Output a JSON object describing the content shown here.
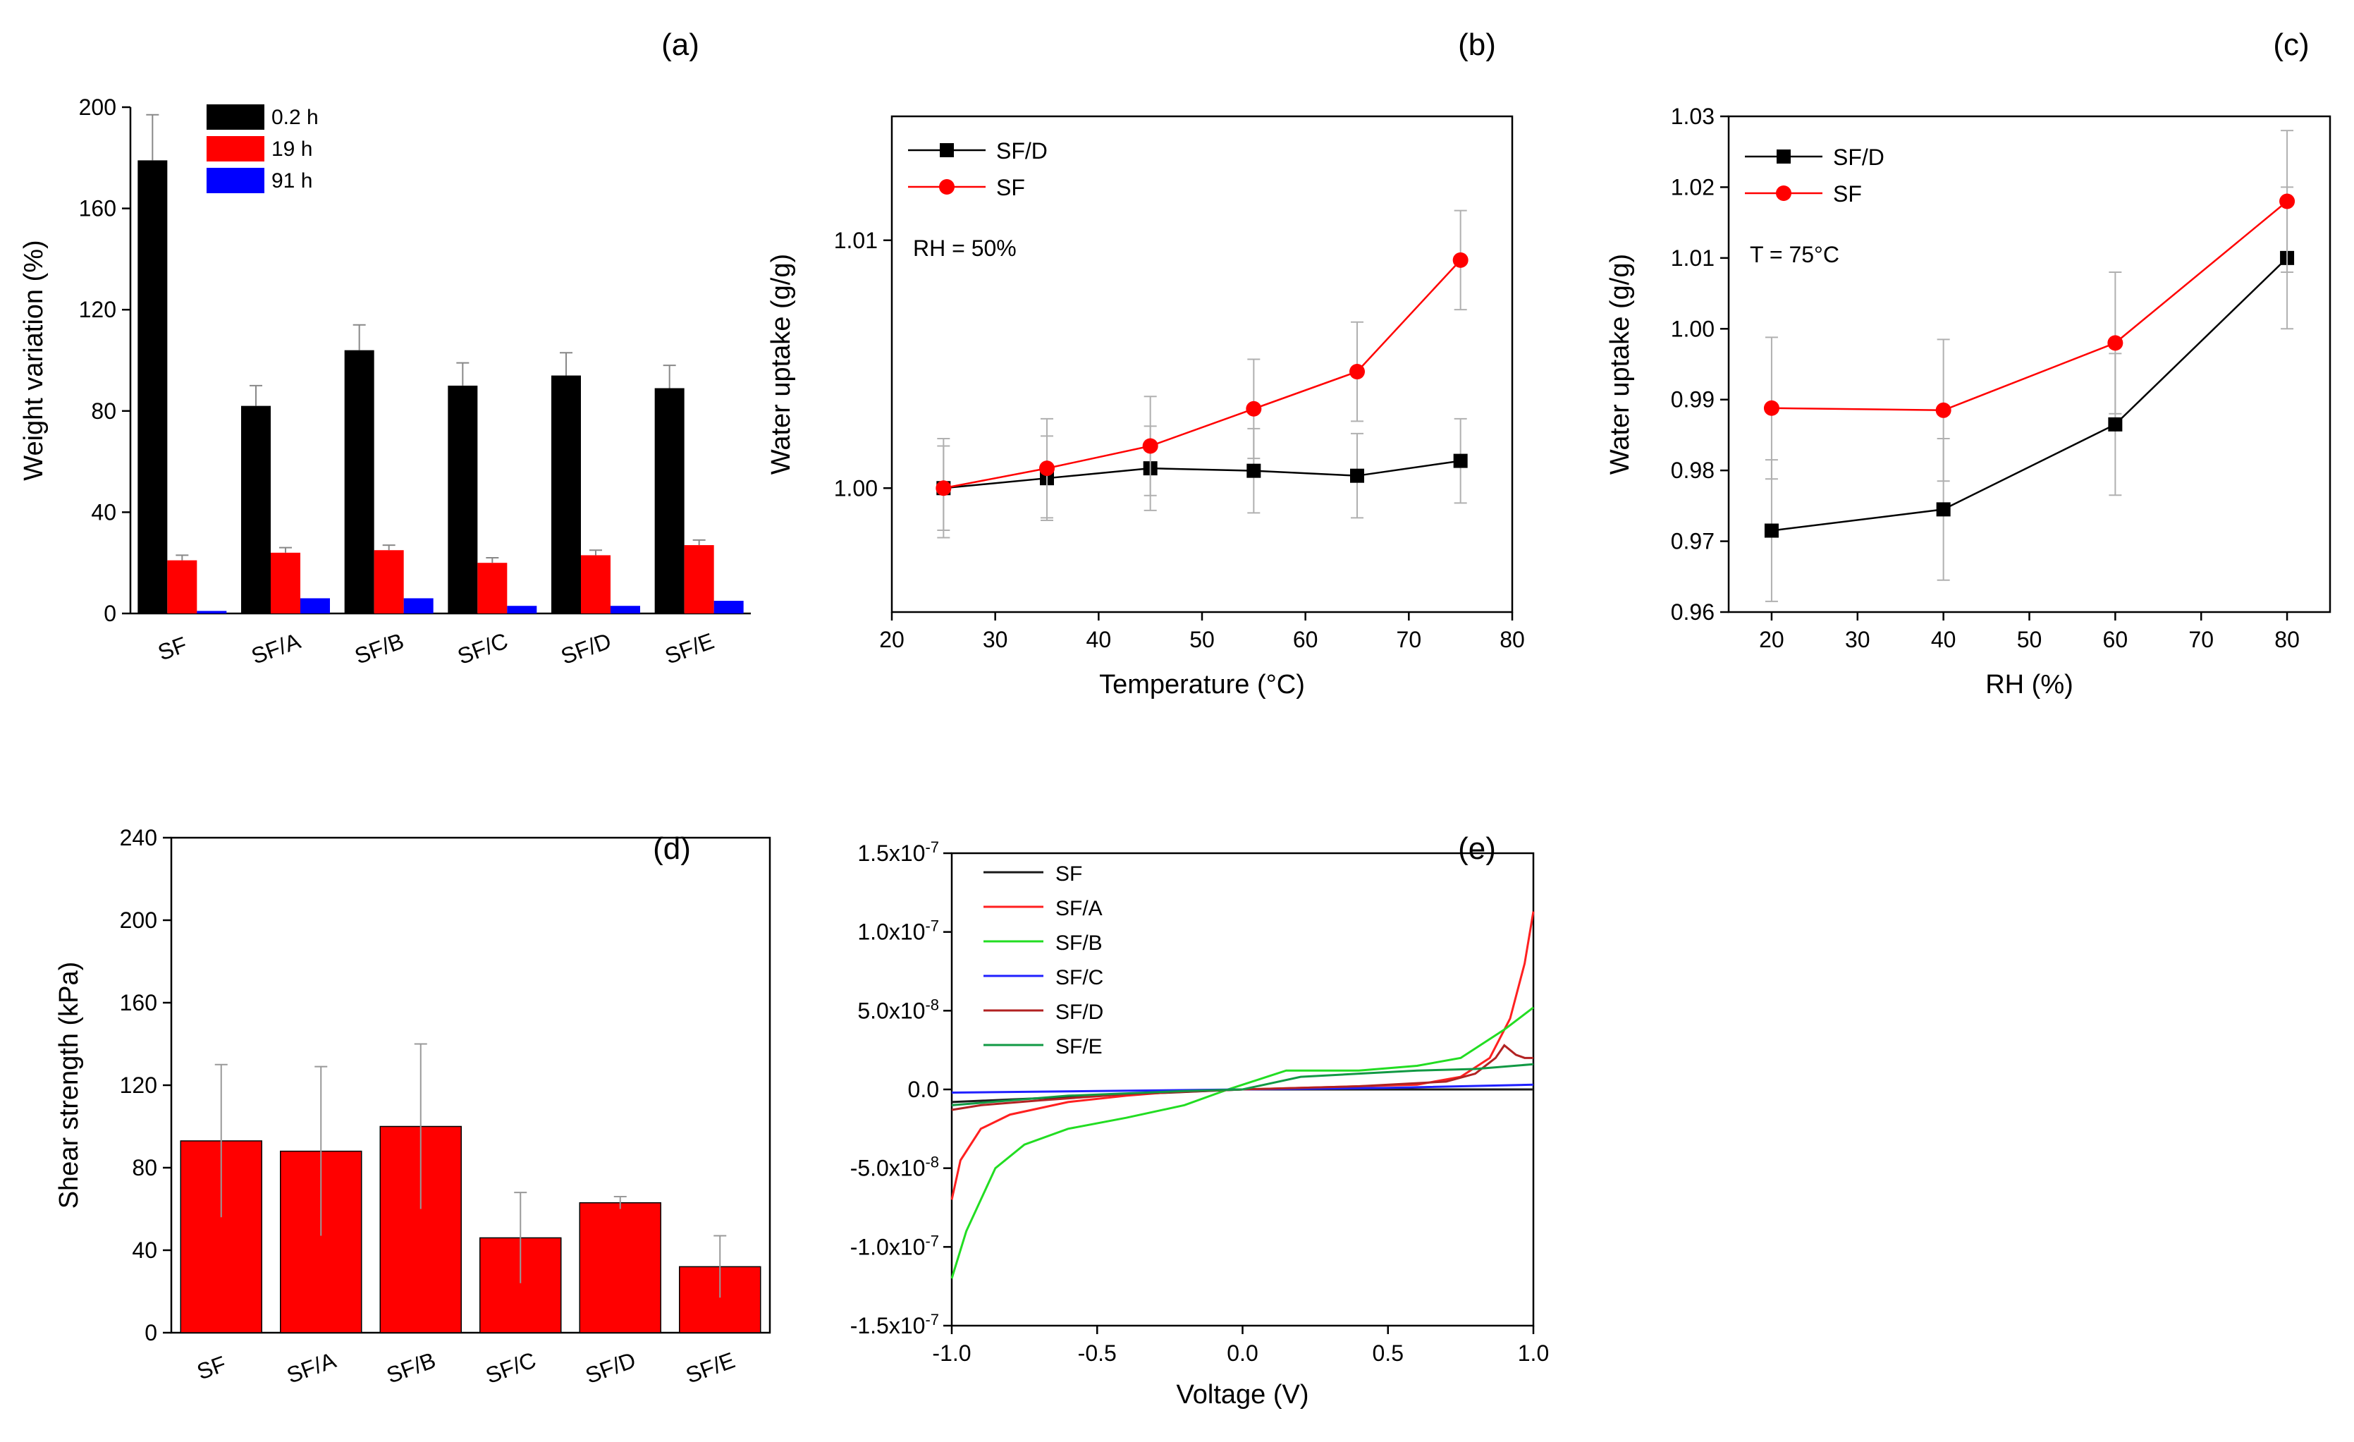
{
  "figure": {
    "panels": [
      "(a)",
      "(b)",
      "(c)",
      "(d)",
      "(e)"
    ]
  },
  "chart_data": [
    {
      "id": "a",
      "type": "bar",
      "panel_label": "(a)",
      "title": "",
      "ylabel": "Weight variation (%)",
      "xlabel": "",
      "ylim": [
        0,
        200
      ],
      "yticks": [
        "0",
        "40",
        "80",
        "120",
        "160",
        "200"
      ],
      "categories": [
        "SF",
        "SF/A",
        "SF/B",
        "SF/C",
        "SF/D",
        "SF/E"
      ],
      "series": [
        {
          "name": "0.2 h",
          "color": "#000000",
          "values": [
            179,
            82,
            104,
            90,
            94,
            89
          ],
          "errors": [
            18,
            8,
            10,
            9,
            9,
            9
          ]
        },
        {
          "name": "19 h",
          "color": "#ff0000",
          "values": [
            21,
            24,
            25,
            20,
            23,
            27
          ],
          "errors": [
            2,
            2,
            2,
            2,
            2,
            2
          ]
        },
        {
          "name": "91 h",
          "color": "#0000ff",
          "values": [
            1,
            6,
            6,
            3,
            3,
            5
          ],
          "errors": [
            0,
            0,
            0,
            0,
            0,
            0
          ]
        }
      ]
    },
    {
      "id": "b",
      "type": "line",
      "panel_label": "(b)",
      "xlabel": "Temperature (°C)",
      "ylabel": "Water uptake (g/g)",
      "annotation": "RH = 50%",
      "xlim": [
        20,
        80
      ],
      "ylim": [
        0.995,
        1.015
      ],
      "xticks": [
        "20",
        "30",
        "40",
        "50",
        "60",
        "70",
        "80"
      ],
      "yticks": [
        "1.00",
        "1.01"
      ],
      "x": [
        25,
        35,
        45,
        55,
        65,
        75
      ],
      "series": [
        {
          "name": "SF/D",
          "color": "#000000",
          "marker": "square",
          "values": [
            1.0,
            1.0004,
            1.0008,
            1.0007,
            1.0005,
            1.0011
          ],
          "errors": [
            0.0017,
            0.0017,
            0.0017,
            0.0017,
            0.0017,
            0.0017
          ]
        },
        {
          "name": "SF",
          "color": "#ff0000",
          "marker": "circle",
          "values": [
            1.0,
            1.0008,
            1.0017,
            1.0032,
            1.0047,
            1.0092
          ],
          "errors": [
            0.002,
            0.002,
            0.002,
            0.002,
            0.002,
            0.002
          ]
        }
      ]
    },
    {
      "id": "c",
      "type": "line",
      "panel_label": "(c)",
      "xlabel": "RH (%)",
      "ylabel": "Water uptake (g/g)",
      "annotation": "T = 75°C",
      "xlim": [
        15,
        85
      ],
      "ylim": [
        0.96,
        1.03
      ],
      "xticks": [
        "20",
        "30",
        "40",
        "50",
        "60",
        "70",
        "80"
      ],
      "yticks": [
        "0.96",
        "0.97",
        "0.98",
        "0.99",
        "1.00",
        "1.01",
        "1.02",
        "1.03"
      ],
      "x": [
        20,
        40,
        60,
        80
      ],
      "series": [
        {
          "name": "SF/D",
          "color": "#000000",
          "marker": "square",
          "values": [
            0.9715,
            0.9745,
            0.9865,
            1.01
          ],
          "errors": [
            0.01,
            0.01,
            0.01,
            0.01
          ]
        },
        {
          "name": "SF",
          "color": "#ff0000",
          "marker": "circle",
          "values": [
            0.9888,
            0.9885,
            0.998,
            1.018
          ],
          "errors": [
            0.01,
            0.01,
            0.01,
            0.01
          ]
        }
      ]
    },
    {
      "id": "d",
      "type": "bar",
      "panel_label": "(d)",
      "xlabel": "",
      "ylabel": "Shear strength (kPa)",
      "ylim": [
        0,
        240
      ],
      "yticks": [
        "0",
        "40",
        "80",
        "120",
        "160",
        "200",
        "240"
      ],
      "categories": [
        "SF",
        "SF/A",
        "SF/B",
        "SF/C",
        "SF/D",
        "SF/E"
      ],
      "series": [
        {
          "name": "Shear strength",
          "color": "#ff0000",
          "values": [
            93,
            88,
            100,
            46,
            63,
            32
          ],
          "errors": [
            37,
            41,
            40,
            22,
            3,
            15
          ]
        }
      ]
    },
    {
      "id": "e",
      "type": "line",
      "panel_label": "(e)",
      "xlabel": "Voltage (V)",
      "ylabel": "",
      "xlim": [
        -1.0,
        1.0
      ],
      "ylim": [
        -1.5e-07,
        1.5e-07
      ],
      "xticks": [
        "-1.0",
        "-0.5",
        "0.0",
        "0.5",
        "1.0"
      ],
      "yticks": [
        "-1.5x10-7",
        "-1.0x10-7",
        "-5.0x10-8",
        "0.0",
        "5.0x10-8",
        "1.0x10-7",
        "1.5x10-7"
      ],
      "series": [
        {
          "name": "SF",
          "color": "#1a1a1a",
          "x": [
            -1.0,
            -0.5,
            0.0,
            0.5,
            1.0
          ],
          "values": [
            -8e-09,
            -4e-09,
            0,
            0,
            0
          ]
        },
        {
          "name": "SF/A",
          "color": "#ff2020",
          "x": [
            -1.0,
            -0.97,
            -0.9,
            -0.8,
            -0.6,
            -0.4,
            -0.2,
            0.0,
            0.2,
            0.4,
            0.6,
            0.75,
            0.85,
            0.92,
            0.97,
            1.0
          ],
          "values": [
            -7e-08,
            -4.5e-08,
            -2.5e-08,
            -1.6e-08,
            -8e-09,
            -4e-09,
            -1e-09,
            0,
            1e-09,
            2e-09,
            3e-09,
            8e-09,
            2e-08,
            4.5e-08,
            8e-08,
            1.13e-07
          ]
        },
        {
          "name": "SF/B",
          "color": "#22dd22",
          "x": [
            -1.0,
            -0.95,
            -0.85,
            -0.75,
            -0.6,
            -0.4,
            -0.2,
            -0.05,
            0.0,
            0.15,
            0.4,
            0.6,
            0.75,
            0.9,
            1.0
          ],
          "values": [
            -1.2e-07,
            -9e-08,
            -5e-08,
            -3.5e-08,
            -2.5e-08,
            -1.8e-08,
            -1e-08,
            0,
            3e-09,
            1.2e-08,
            1.2e-08,
            1.5e-08,
            2e-08,
            3.8e-08,
            5.2e-08
          ]
        },
        {
          "name": "SF/C",
          "color": "#2020ff",
          "x": [
            -1.0,
            -0.5,
            0.0,
            0.5,
            1.0
          ],
          "values": [
            -2e-09,
            -1e-09,
            0,
            1e-09,
            3e-09
          ]
        },
        {
          "name": "SF/D",
          "color": "#b22222",
          "x": [
            -1.0,
            -0.9,
            -0.7,
            -0.4,
            0.0,
            0.4,
            0.7,
            0.8,
            0.87,
            0.9,
            0.94,
            0.97,
            1.0
          ],
          "values": [
            -1.3e-08,
            -1e-08,
            -7e-09,
            -3e-09,
            0,
            2e-09,
            5e-09,
            1e-08,
            2e-08,
            2.8e-08,
            2.2e-08,
            2e-08,
            2e-08
          ]
        },
        {
          "name": "SF/E",
          "color": "#119944",
          "x": [
            -1.0,
            -0.6,
            -0.2,
            0.0,
            0.2,
            0.4,
            0.6,
            0.8,
            1.0
          ],
          "values": [
            -1e-08,
            -4e-09,
            -1e-09,
            0,
            8e-09,
            1e-08,
            1.2e-08,
            1.3e-08,
            1.6e-08
          ]
        }
      ],
      "legend_label_colors": [
        "#000000",
        "#ff0000",
        "#00cc00",
        "#0000ff",
        "#b22222",
        "#808000"
      ]
    }
  ]
}
